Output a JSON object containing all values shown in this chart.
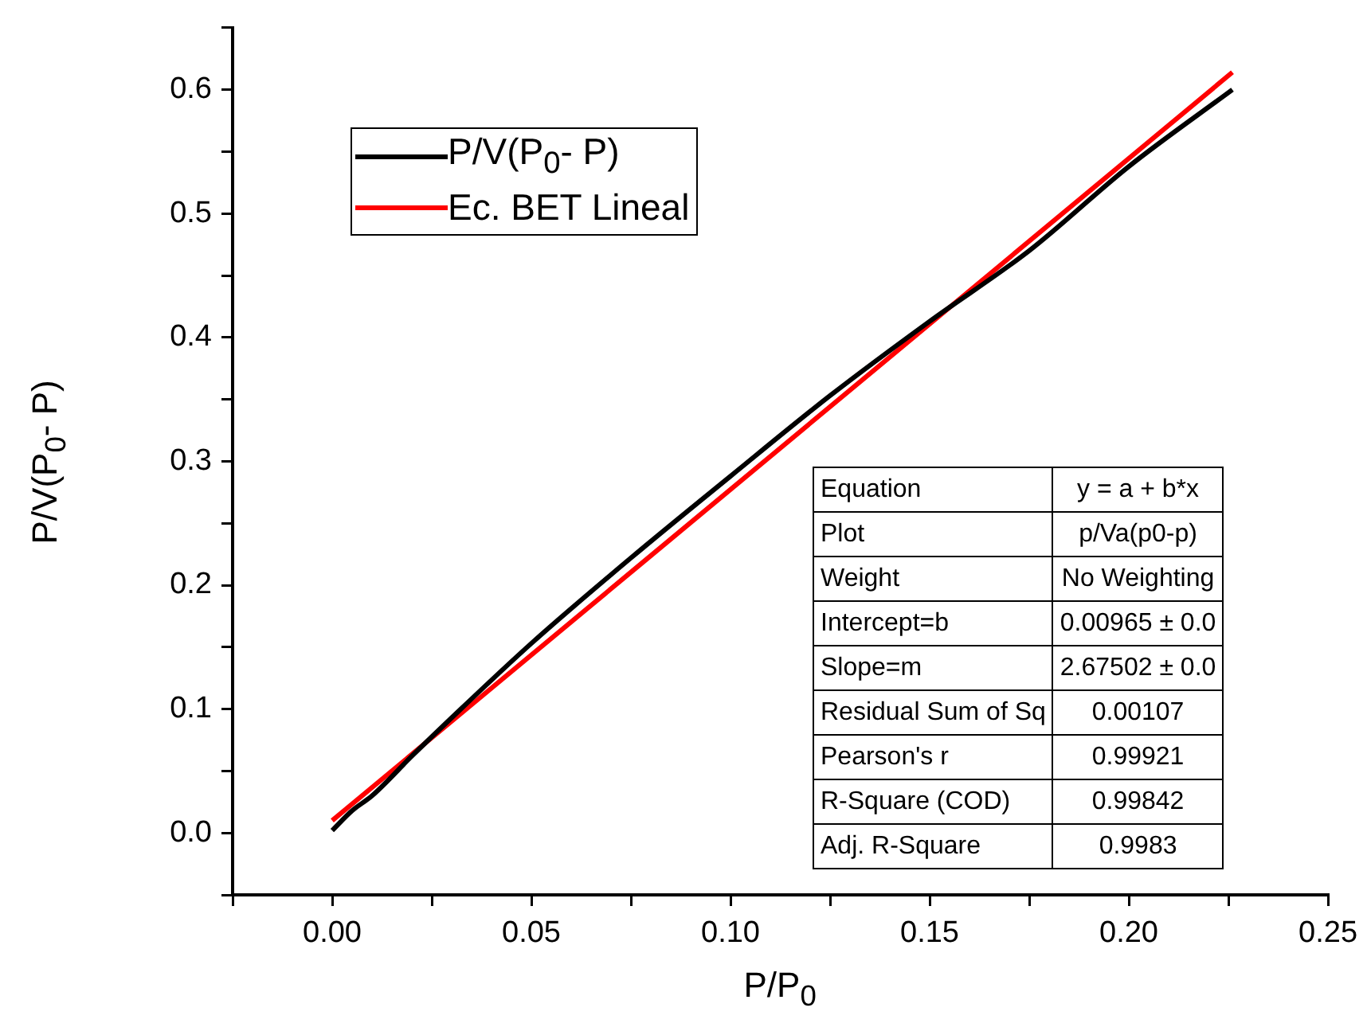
{
  "chart_data": {
    "type": "line",
    "xlabel": "P/P$_{0}$",
    "ylabel": "P/V(P$_{0}$- P)",
    "xlim": [
      -0.025,
      0.25
    ],
    "xticks": [
      {
        "value": -0.025,
        "label": null
      },
      {
        "value": 0,
        "label": "0.00"
      },
      {
        "value": 0.025,
        "label": null
      },
      {
        "value": 0.05,
        "label": "0.05"
      },
      {
        "value": 0.075,
        "label": null
      },
      {
        "value": 0.1,
        "label": "0.10"
      },
      {
        "value": 0.125,
        "label": null
      },
      {
        "value": 0.15,
        "label": "0.15"
      },
      {
        "value": 0.175,
        "label": null
      },
      {
        "value": 0.2,
        "label": "0.20"
      },
      {
        "value": 0.225,
        "label": null
      },
      {
        "value": 0.25,
        "label": "0.25"
      }
    ],
    "ylim": [
      -0.05,
      0.65
    ],
    "yticks": [
      {
        "value": -0.05,
        "label": null
      },
      {
        "value": 0,
        "label": "0.0"
      },
      {
        "value": 0.05,
        "label": null
      },
      {
        "value": 0.1,
        "label": "0.1"
      },
      {
        "value": 0.15,
        "label": null
      },
      {
        "value": 0.2,
        "label": "0.2"
      },
      {
        "value": 0.25,
        "label": null
      },
      {
        "value": 0.3,
        "label": "0.3"
      },
      {
        "value": 0.35,
        "label": null
      },
      {
        "value": 0.4,
        "label": "0.4"
      },
      {
        "value": 0.45,
        "label": null
      },
      {
        "value": 0.5,
        "label": "0.5"
      },
      {
        "value": 0.55,
        "label": null
      },
      {
        "value": 0.6,
        "label": "0.6"
      },
      {
        "value": 0.65,
        "label": null
      }
    ],
    "grid": false,
    "legend": "top left",
    "marker": "none",
    "line_style": "solid",
    "series": [
      {
        "name": "P/V(P$_{0}$- P)",
        "color": "#000000",
        "x": [
          0,
          0.005,
          0.01,
          0.02,
          0.03,
          0.05,
          0.075,
          0.1,
          0.125,
          0.15,
          0.175,
          0.2,
          0.226
        ],
        "values": [
          0.002,
          0.018,
          0.03,
          0.062,
          0.093,
          0.153,
          0.222,
          0.288,
          0.353,
          0.413,
          0.47,
          0.538,
          0.6
        ]
      },
      {
        "name": "Ec. BET Lineal",
        "color": "#ff0000",
        "x": [
          0,
          0.226
        ],
        "values": [
          0.01,
          0.614
        ]
      }
    ],
    "annotations": [
      "Equation",
      "y = a + b*x",
      "Plot",
      "p/Va(p0-p)",
      "Weight",
      "No Weighting",
      "Intercept=b",
      "0.00965 ± 0.0",
      "Slope=m",
      "2.67502 ± 0.0",
      "Residual Sum of Sq",
      "0.00107",
      "Pearson's r",
      "0.99921",
      "R-Square (COD)",
      "0.99842",
      "Adj. R-Square",
      "0.9983"
    ]
  }
}
